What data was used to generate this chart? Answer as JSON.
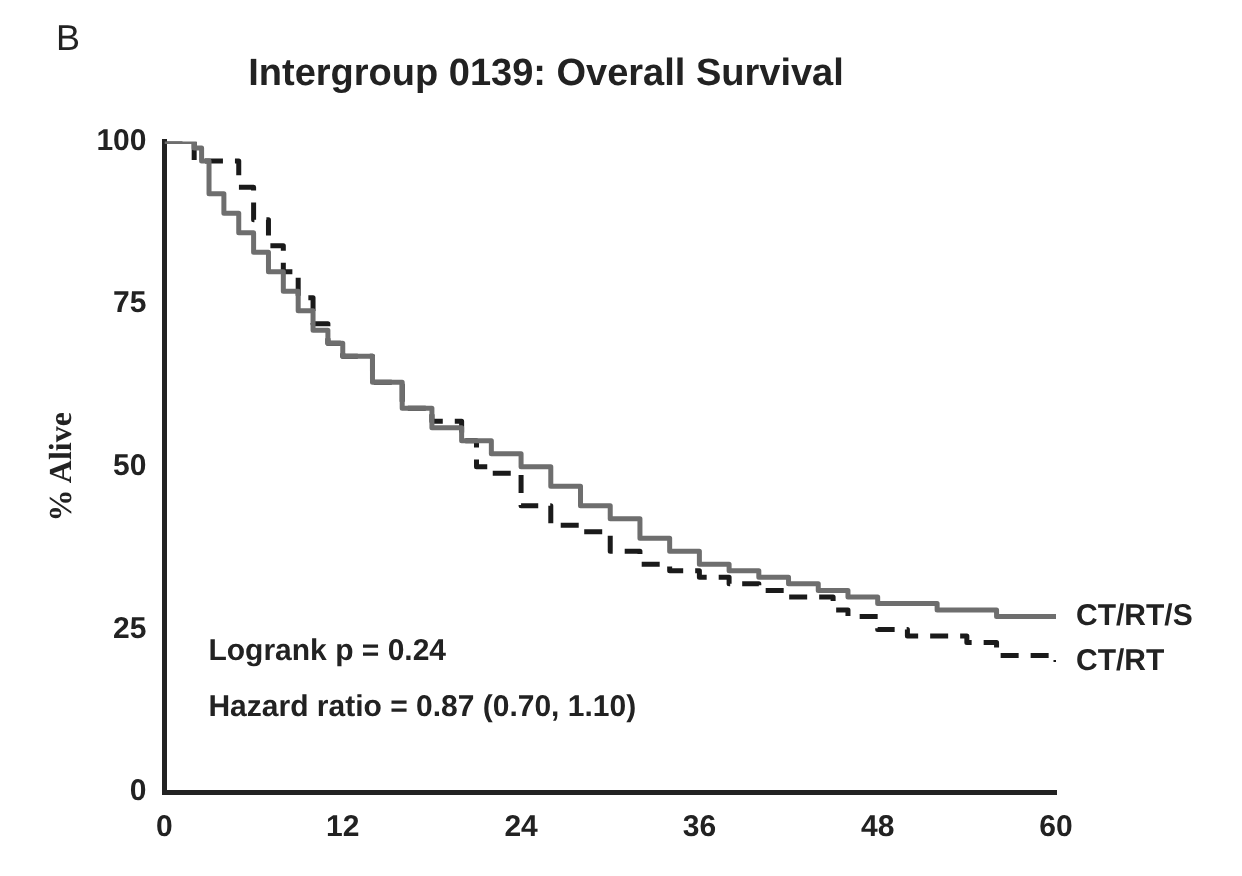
{
  "chart_data": {
    "type": "step",
    "title": "Intergroup 0139: Overall Survival",
    "ylabel": "% Alive",
    "annotations": [
      "B",
      "Logrank p = 0.24",
      "Hazard ratio = 0.87 (0.70, 1.10)"
    ],
    "xlim": [
      0,
      60
    ],
    "xticks": [
      0,
      12,
      24,
      36,
      48,
      60
    ],
    "ylim": [
      0,
      100
    ],
    "yticks": [
      0,
      25,
      50,
      75,
      100
    ],
    "grid": false,
    "legend": false,
    "series": [
      {
        "name": "CT/RT/S",
        "color": "#6e6e6e",
        "line_style": "solid",
        "x": [
          0,
          1.5,
          2,
          2.5,
          3,
          4,
          5,
          6,
          7,
          8,
          9,
          10,
          11,
          12,
          14,
          16,
          18,
          20,
          22,
          24,
          26,
          28,
          30,
          32,
          34,
          36,
          38,
          40,
          42,
          44,
          46,
          48,
          50,
          52,
          54,
          56,
          58,
          60
        ],
        "values": [
          100,
          100,
          99,
          97,
          92,
          89,
          86,
          83,
          80,
          77,
          74,
          71,
          69,
          67,
          63,
          59,
          56,
          54,
          52,
          50,
          47,
          44,
          42,
          39,
          37,
          35,
          34,
          33,
          32,
          31,
          30,
          29,
          29,
          28,
          28,
          27,
          27,
          27
        ]
      },
      {
        "name": "CT/RT",
        "color": "#1a1a1a",
        "line_style": "dashed",
        "x": [
          0,
          1.5,
          2,
          4.5,
          5,
          6,
          7,
          8,
          9,
          10,
          11,
          12,
          14,
          16,
          18,
          20,
          21,
          22,
          24,
          26,
          28,
          30,
          32,
          34,
          36,
          38,
          40,
          42,
          44,
          45,
          46,
          48,
          50,
          52,
          54,
          56,
          58,
          60
        ],
        "values": [
          100,
          100,
          97,
          97,
          93,
          88,
          84,
          80,
          76,
          72,
          69,
          67,
          63,
          59,
          57,
          54,
          50,
          49,
          44,
          41,
          40,
          37,
          35,
          34,
          33,
          32,
          31,
          30,
          30,
          28,
          27,
          25,
          24,
          24,
          23,
          21,
          21,
          20
        ]
      }
    ]
  }
}
